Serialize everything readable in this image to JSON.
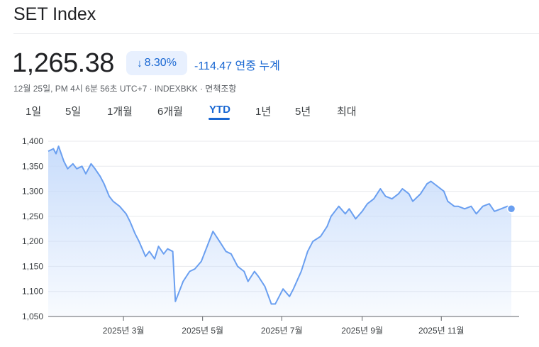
{
  "header": {
    "title": "SET Index",
    "price": "1,265.38",
    "change_percent": "8.30%",
    "change_direction": "down",
    "change_value": "-114.47 연중 누계",
    "meta": "12월 25일, PM 4시 6분 56초 UTC+7 · INDEXBKK · 면책조항"
  },
  "tabs": [
    {
      "label": "1일",
      "active": false
    },
    {
      "label": "5일",
      "active": false
    },
    {
      "label": "1개월",
      "active": false
    },
    {
      "label": "6개월",
      "active": false
    },
    {
      "label": "YTD",
      "active": true
    },
    {
      "label": "1년",
      "active": false
    },
    {
      "label": "5년",
      "active": false
    },
    {
      "label": "최대",
      "active": false
    }
  ],
  "colors": {
    "accent": "#1967d2",
    "line": "#6a9ff0",
    "fill_top": "#c6dbfb",
    "grid": "#e8eaed"
  },
  "chart_data": {
    "type": "area",
    "xlabel": "",
    "ylabel": "",
    "ylim": [
      1050,
      1400
    ],
    "y_ticks": [
      1050,
      1100,
      1150,
      1200,
      1250,
      1300,
      1350,
      1400
    ],
    "y_tick_labels": [
      "1,050",
      "1,100",
      "1,150",
      "1,200",
      "1,250",
      "1,300",
      "1,350",
      "1,400"
    ],
    "x_ticks": [
      "2025-03-01",
      "2025-05-01",
      "2025-07-01",
      "2025-09-01",
      "2025-11-01"
    ],
    "x_tick_labels": [
      "2025년 3월",
      "2025년 5월",
      "2025년 7월",
      "2025년 9월",
      "2025년 11월"
    ],
    "xlim": [
      "2025-01-02",
      "2025-12-31"
    ],
    "grid": true,
    "series": [
      {
        "x": [
          "2025-01-02",
          "2025-01-06",
          "2025-01-08",
          "2025-01-10",
          "2025-01-14",
          "2025-01-17",
          "2025-01-21",
          "2025-01-24",
          "2025-01-28",
          "2025-01-31",
          "2025-02-04",
          "2025-02-07",
          "2025-02-11",
          "2025-02-14",
          "2025-02-18",
          "2025-02-21",
          "2025-02-26",
          "2025-03-03",
          "2025-03-06",
          "2025-03-10",
          "2025-03-13",
          "2025-03-18",
          "2025-03-21",
          "2025-03-25",
          "2025-03-28",
          "2025-04-01",
          "2025-04-04",
          "2025-04-08",
          "2025-04-10",
          "2025-04-16",
          "2025-04-21",
          "2025-04-25",
          "2025-04-30",
          "2025-05-06",
          "2025-05-09",
          "2025-05-14",
          "2025-05-19",
          "2025-05-23",
          "2025-05-28",
          "2025-06-02",
          "2025-06-05",
          "2025-06-10",
          "2025-06-13",
          "2025-06-18",
          "2025-06-23",
          "2025-06-26",
          "2025-07-02",
          "2025-07-07",
          "2025-07-10",
          "2025-07-16",
          "2025-07-21",
          "2025-07-25",
          "2025-07-31",
          "2025-08-05",
          "2025-08-08",
          "2025-08-14",
          "2025-08-19",
          "2025-08-22",
          "2025-08-27",
          "2025-09-01",
          "2025-09-05",
          "2025-09-10",
          "2025-09-15",
          "2025-09-19",
          "2025-09-24",
          "2025-09-29",
          "2025-10-02",
          "2025-10-07",
          "2025-10-10",
          "2025-10-16",
          "2025-10-21",
          "2025-10-24",
          "2025-10-29",
          "2025-11-03",
          "2025-11-06",
          "2025-11-11",
          "2025-11-14",
          "2025-11-19",
          "2025-11-24",
          "2025-11-28",
          "2025-12-03",
          "2025-12-08",
          "2025-12-12",
          "2025-12-17",
          "2025-12-22",
          "2025-12-25"
        ],
        "values": [
          1380,
          1385,
          1375,
          1390,
          1360,
          1345,
          1355,
          1345,
          1350,
          1335,
          1355,
          1345,
          1330,
          1315,
          1290,
          1280,
          1270,
          1255,
          1240,
          1215,
          1200,
          1170,
          1180,
          1165,
          1190,
          1175,
          1185,
          1180,
          1080,
          1120,
          1140,
          1145,
          1160,
          1200,
          1220,
          1200,
          1180,
          1175,
          1150,
          1140,
          1120,
          1140,
          1130,
          1110,
          1075,
          1075,
          1105,
          1090,
          1105,
          1140,
          1180,
          1200,
          1210,
          1230,
          1250,
          1270,
          1255,
          1265,
          1245,
          1260,
          1275,
          1285,
          1305,
          1290,
          1285,
          1295,
          1305,
          1295,
          1280,
          1295,
          1315,
          1320,
          1310,
          1300,
          1280,
          1270,
          1270,
          1265,
          1270,
          1255,
          1270,
          1275,
          1260,
          1265,
          1270,
          1265
        ]
      }
    ]
  }
}
